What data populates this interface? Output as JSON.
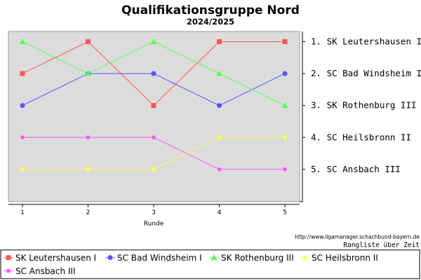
{
  "title": "Qualifikationsgruppe Nord",
  "subtitle": "2024/2025",
  "footer": {
    "url": "http://www.ligamanager.schachbund-bayern.de",
    "caption": "Rangliste über Zeit"
  },
  "chart_data": {
    "type": "line",
    "title": "Qualifikationsgruppe Nord",
    "subtitle": "2024/2025",
    "xlabel": "Runde",
    "ylabel": "",
    "x": [
      1,
      2,
      3,
      4,
      5
    ],
    "ylim": [
      1,
      5
    ],
    "y_inverted": true,
    "grid": false,
    "legend_position": "bottom",
    "y_tick_labels": [
      "1. SK Leutershausen I",
      "2. SC Bad Windsheim I",
      "3. SK Rothenburg III",
      "4. SC Heilsbronn II",
      "5. SC Ansbach III"
    ],
    "series": [
      {
        "name": "SK Leutershausen I",
        "values": [
          2,
          1,
          3,
          1,
          1
        ],
        "color": "#ff5555",
        "marker": "square"
      },
      {
        "name": "SC Bad Windsheim I",
        "values": [
          3,
          2,
          2,
          3,
          2
        ],
        "color": "#5555ff",
        "marker": "circle"
      },
      {
        "name": "SK Rothenburg III",
        "values": [
          1,
          2,
          1,
          2,
          3
        ],
        "color": "#55ff55",
        "marker": "triangle"
      },
      {
        "name": "SC Heilsbronn II",
        "values": [
          5,
          5,
          5,
          4,
          4
        ],
        "color": "#ffff55",
        "marker": "diamond"
      },
      {
        "name": "SC Ansbach III",
        "values": [
          4,
          4,
          4,
          5,
          5
        ],
        "color": "#ff55ff",
        "marker": "small-square"
      }
    ]
  }
}
